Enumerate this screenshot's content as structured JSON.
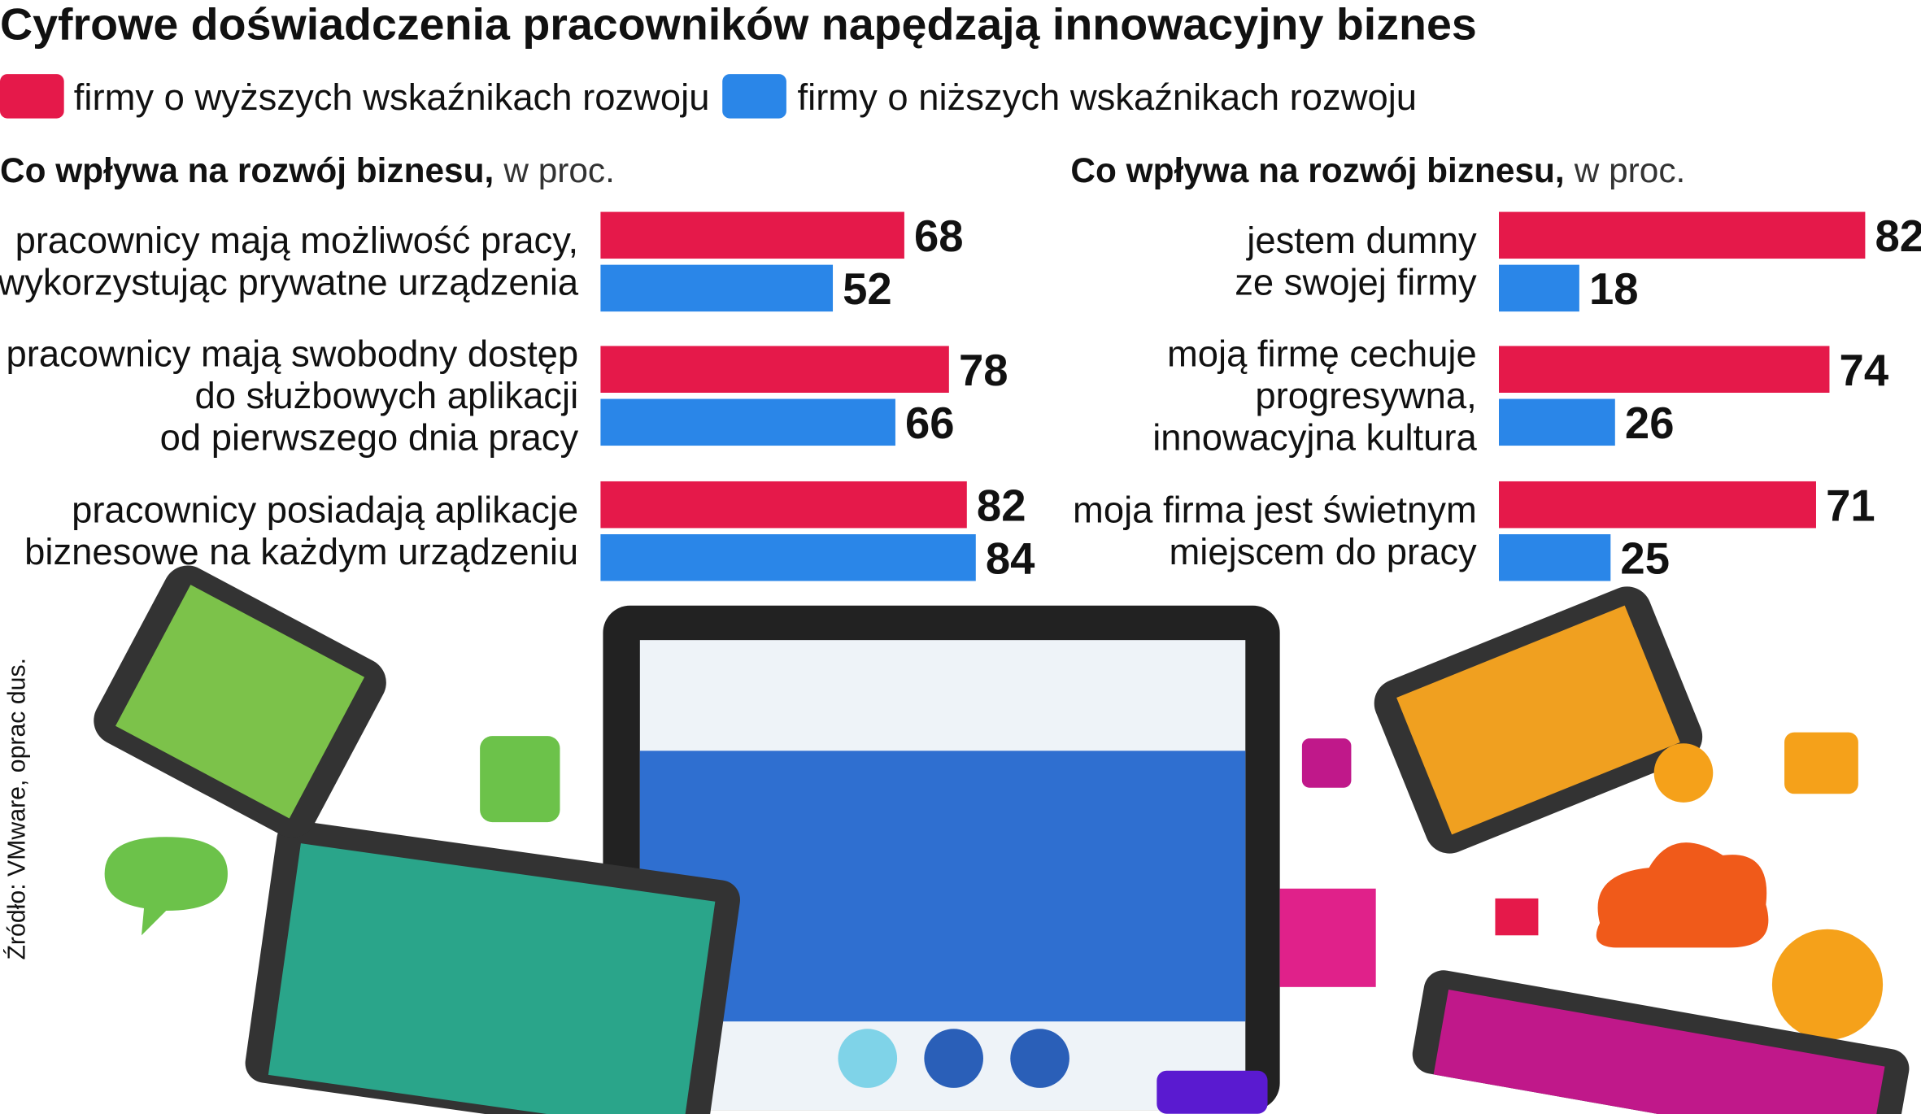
{
  "title": "Cyfrowe doświadczenia pracowników napędzają innowacyjny biznes",
  "source": "Źródło: VMware, oprac dus.",
  "chart_data": [
    {
      "type": "bar",
      "orientation": "horizontal",
      "subtitle": "Co wpływa na rozwój biznesu,",
      "unit_note": "w proc.",
      "categories": [
        "pracownicy mają możliwość pracy,\nwykorzystując prywatne urządzenia",
        "pracownicy mają swobodny dostęp\ndo służbowych aplikacji\nod pierwszego dnia pracy",
        "pracownicy posiadają aplikacje\nbiznesowe na każdym urządzeniu"
      ],
      "series": [
        {
          "name": "firmy o wyższych wskaźnikach rozwoju",
          "color": "#e5194a",
          "values": [
            68,
            78,
            82
          ]
        },
        {
          "name": "firmy o niższych wskaźnikach rozwoju",
          "color": "#2a86e8",
          "values": [
            52,
            66,
            84
          ]
        }
      ]
    },
    {
      "type": "bar",
      "orientation": "horizontal",
      "subtitle": "Co wpływa na rozwój biznesu,",
      "unit_note": "w proc.",
      "categories": [
        "jestem dumny\nze swojej firmy",
        "moją firmę cechuje\nprogresywna,\ninnowacyjna kultura",
        "moja firma jest świetnym\nmiejscem do pracy"
      ],
      "series": [
        {
          "name": "firmy o wyższych wskaźnikach rozwoju",
          "color": "#e5194a",
          "values": [
            82,
            74,
            71
          ]
        },
        {
          "name": "firmy o niższych wskaźnikach rozwoju",
          "color": "#2a86e8",
          "values": [
            18,
            26,
            25
          ]
        }
      ]
    }
  ]
}
